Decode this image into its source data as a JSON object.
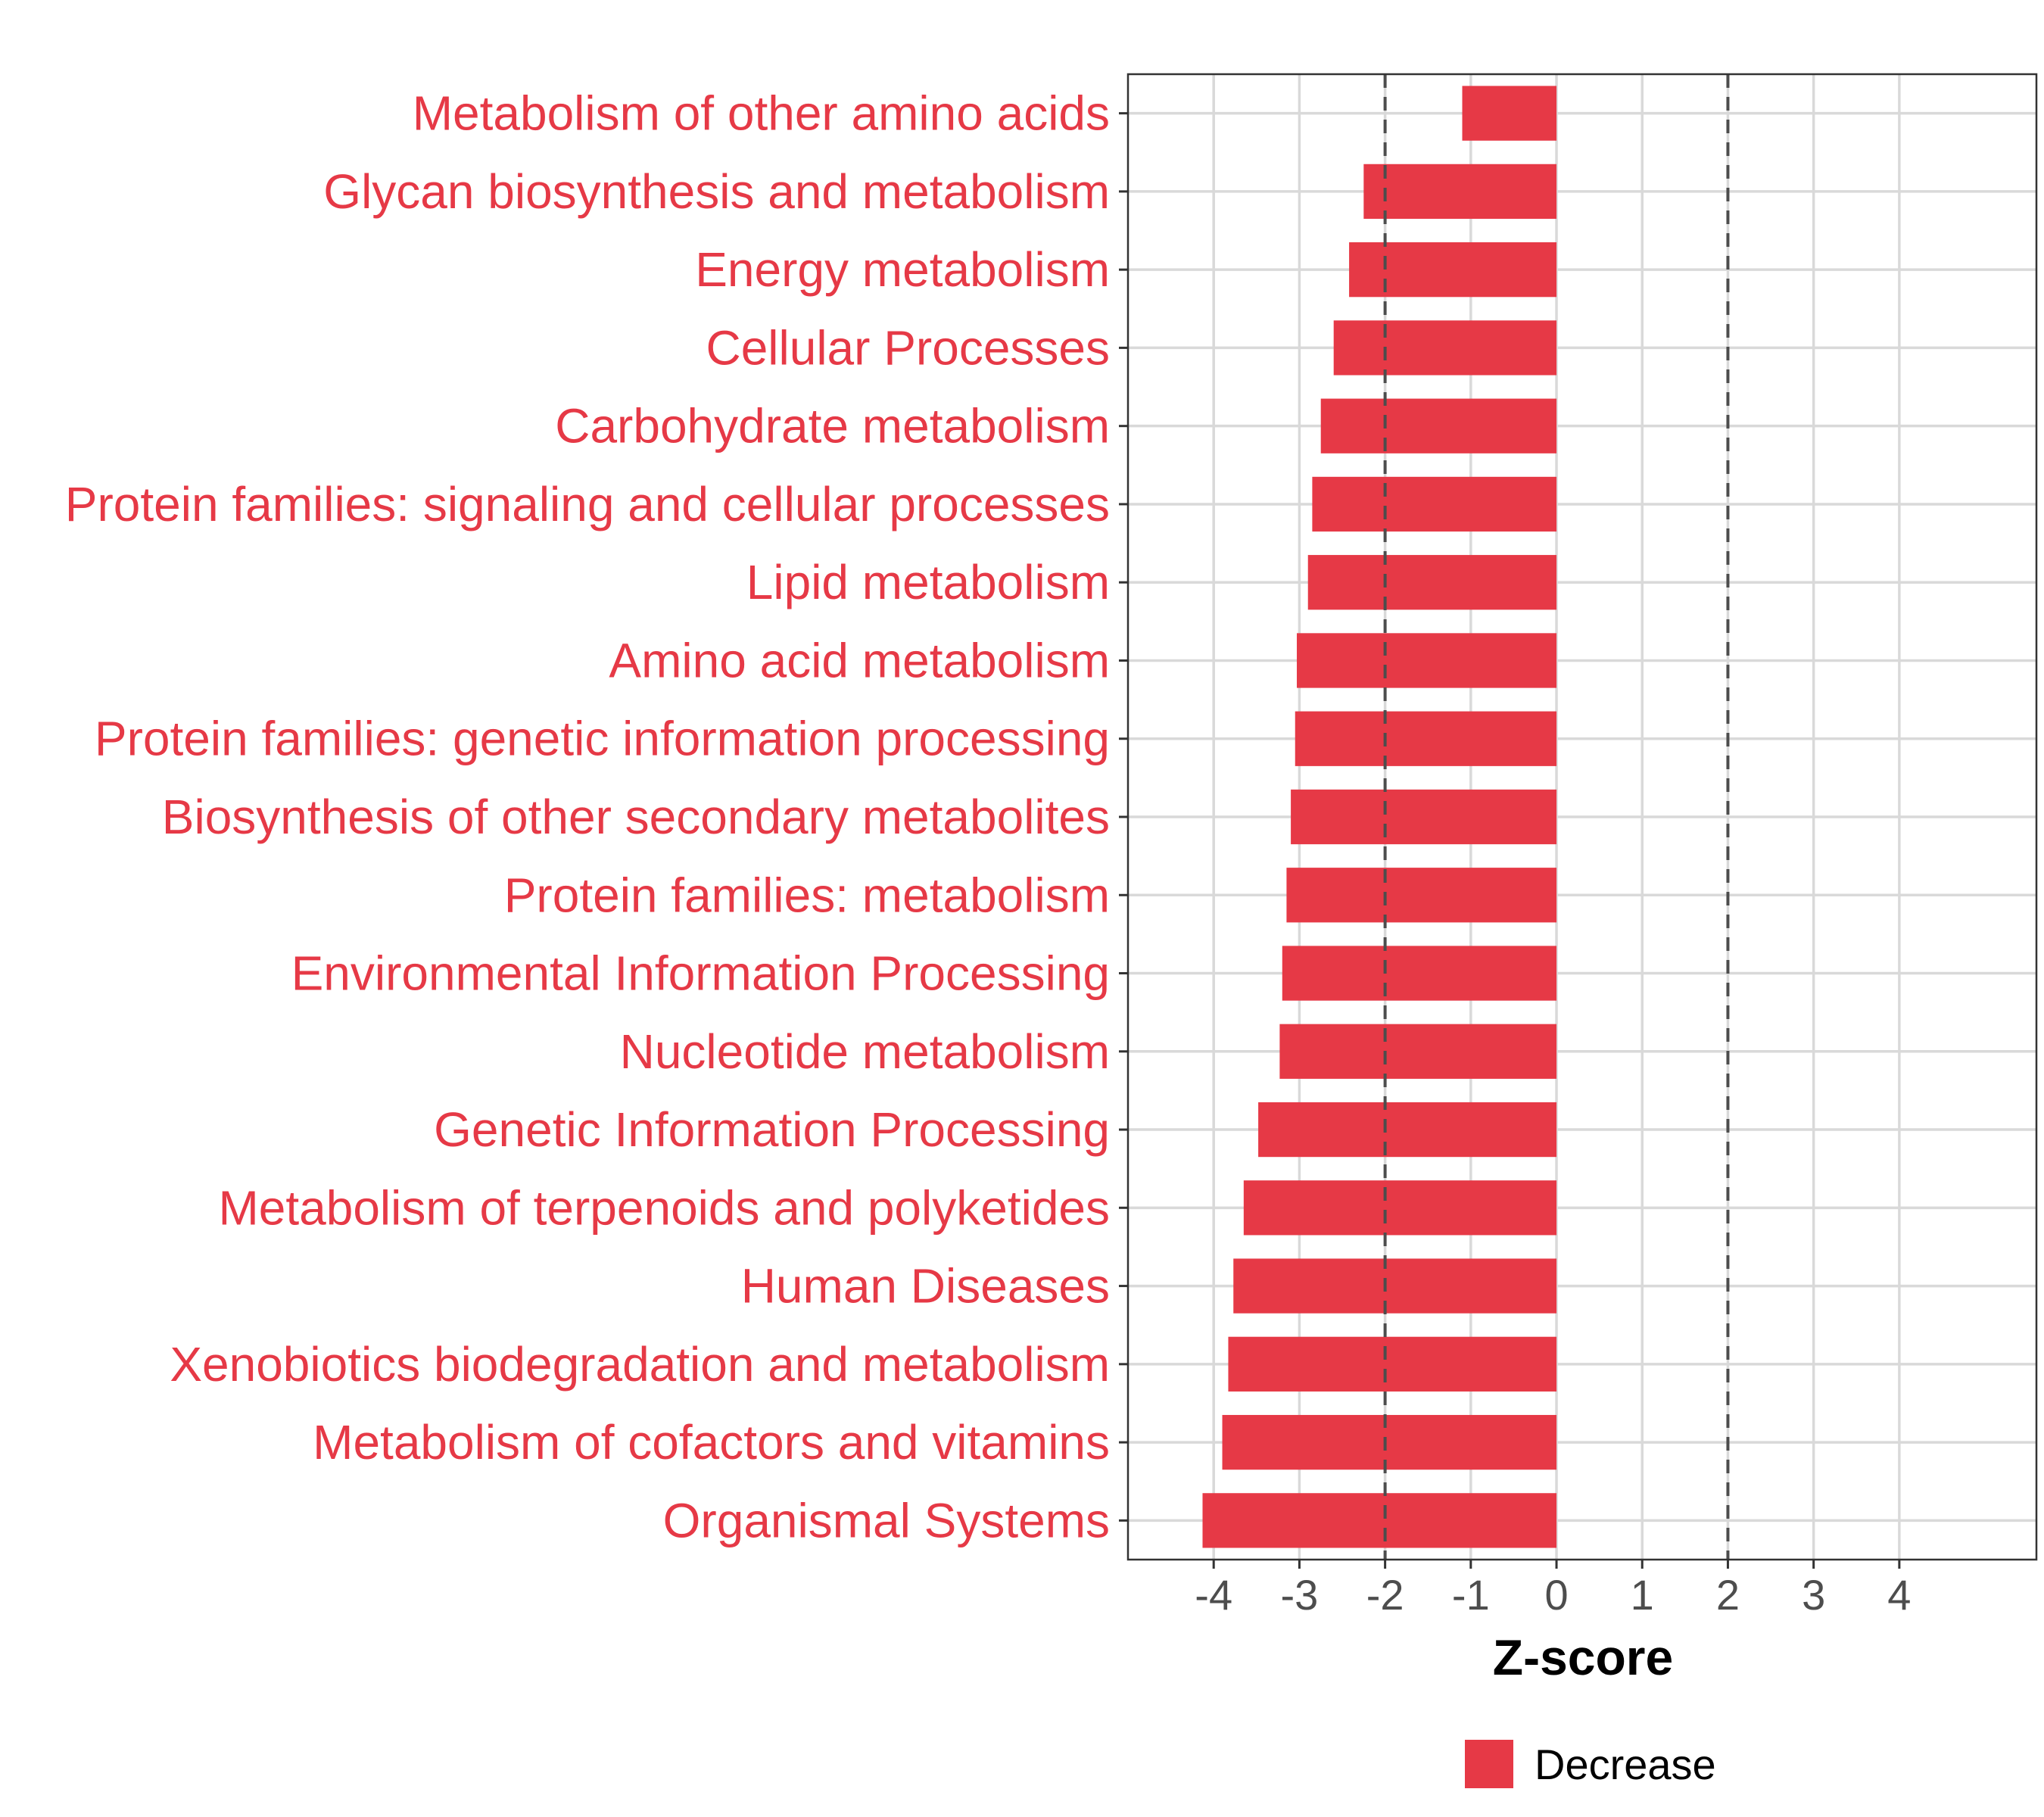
{
  "chart_data": {
    "type": "bar",
    "orientation": "horizontal",
    "title": "",
    "xlabel": "Z-score",
    "ylabel": "",
    "xlim": [
      -5.0,
      5.6
    ],
    "xticks": [
      -4,
      -3,
      -2,
      -1,
      0,
      1,
      2,
      3,
      4
    ],
    "xtick_labels": [
      "-4",
      "-3",
      "-2",
      "-1",
      "0",
      "1",
      "2",
      "3",
      "4"
    ],
    "reference_lines": [
      -2,
      2
    ],
    "grid": true,
    "legend_position": "bottom",
    "categories": [
      "Metabolism of other amino acids",
      "Glycan biosynthesis and metabolism",
      "Energy metabolism",
      "Cellular Processes",
      "Carbohydrate metabolism",
      "Protein families: signaling and cellular processes",
      "Lipid metabolism",
      "Amino acid metabolism",
      "Protein families: genetic information processing",
      "Biosynthesis of other secondary metabolites",
      "Protein families: metabolism",
      "Environmental Information Processing",
      "Nucleotide metabolism",
      "Genetic Information Processing",
      "Metabolism of terpenoids and polyketides",
      "Human Diseases",
      "Xenobiotics biodegradation and metabolism",
      "Metabolism of cofactors and vitamins",
      "Organismal Systems"
    ],
    "series": [
      {
        "name": "Decrease",
        "color": "#e63946",
        "values": [
          -1.1,
          -2.25,
          -2.42,
          -2.6,
          -2.75,
          -2.85,
          -2.9,
          -3.03,
          -3.05,
          -3.1,
          -3.15,
          -3.2,
          -3.23,
          -3.48,
          -3.65,
          -3.77,
          -3.83,
          -3.9,
          -4.13
        ]
      }
    ]
  }
}
